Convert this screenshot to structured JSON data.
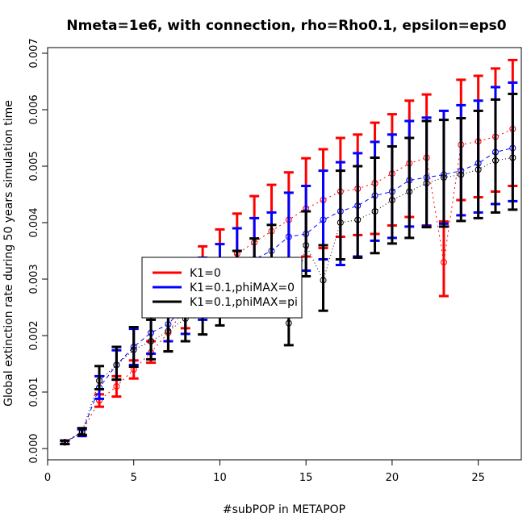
{
  "chart_data": {
    "type": "scatter",
    "title": "Nmeta=1e6, with connection, rho=Rho0.1, epsilon=eps0",
    "xlabel": "#subPOP in METAPOP",
    "ylabel": "Global extinction rate during 50 years simulation time",
    "xlim": [
      0,
      27.5
    ],
    "ylim": [
      -0.0002,
      0.0071
    ],
    "xticks": [
      0,
      5,
      10,
      15,
      20,
      25
    ],
    "xtick_labels": [
      "0",
      "5",
      "10",
      "15",
      "20",
      "25"
    ],
    "yticks": [
      0,
      0.001,
      0.002,
      0.003,
      0.004,
      0.005,
      0.006,
      0.007
    ],
    "ytick_labels": [
      "0.000",
      "0.001",
      "0.002",
      "0.003",
      "0.004",
      "0.005",
      "0.006",
      "0.007"
    ],
    "legend": {
      "position": "center-left"
    },
    "series": [
      {
        "name": "K1=0",
        "color": "#ff0000",
        "dash": "2,4",
        "x": [
          1,
          2,
          3,
          4,
          5,
          6,
          7,
          8,
          9,
          10,
          11,
          12,
          13,
          14,
          15,
          16,
          17,
          18,
          19,
          20,
          21,
          22,
          23,
          24,
          25,
          26,
          27
        ],
        "y": [
          0.00011,
          0.0003,
          0.00085,
          0.0011,
          0.0014,
          0.0017,
          0.00205,
          0.0025,
          0.003,
          0.00325,
          0.00345,
          0.00365,
          0.00385,
          0.00405,
          0.00425,
          0.0044,
          0.00455,
          0.0046,
          0.0047,
          0.00487,
          0.00505,
          0.00515,
          0.0033,
          0.00538,
          0.00544,
          0.00552,
          0.00566
        ],
        "lo": [
          8e-05,
          0.00024,
          0.00074,
          0.00092,
          0.00124,
          0.00152,
          0.00172,
          0.00213,
          0.00248,
          0.00268,
          0.00283,
          0.00298,
          0.00313,
          0.0033,
          0.0034,
          0.00355,
          0.00375,
          0.00378,
          0.0038,
          0.00395,
          0.0041,
          0.00395,
          0.0027,
          0.0044,
          0.00445,
          0.00455,
          0.00465
        ],
        "hi": [
          0.00014,
          0.00036,
          0.00096,
          0.00128,
          0.00156,
          0.0019,
          0.0024,
          0.0029,
          0.00358,
          0.00388,
          0.00416,
          0.00447,
          0.00467,
          0.00489,
          0.00514,
          0.0053,
          0.0055,
          0.00556,
          0.00577,
          0.00592,
          0.00616,
          0.00627,
          0.00402,
          0.00653,
          0.0066,
          0.00673,
          0.00688
        ]
      },
      {
        "name": "K1=0.1,phiMAX=0",
        "color": "#0000ff",
        "dash": "5,4",
        "x": [
          1,
          2,
          3,
          4,
          5,
          6,
          7,
          8,
          9,
          10,
          11,
          12,
          13,
          14,
          15,
          16,
          17,
          18,
          19,
          20,
          21,
          22,
          23,
          24,
          25,
          26,
          27
        ],
        "y": [
          0.00011,
          0.00028,
          0.00108,
          0.00148,
          0.0018,
          0.00205,
          0.0022,
          0.00255,
          0.0028,
          0.00305,
          0.00325,
          0.00335,
          0.0035,
          0.00375,
          0.0038,
          0.00405,
          0.0042,
          0.0043,
          0.00448,
          0.00455,
          0.00475,
          0.0048,
          0.00485,
          0.00492,
          0.00505,
          0.00525,
          0.00532
        ],
        "lo": [
          8e-05,
          0.00022,
          0.00088,
          0.00122,
          0.00148,
          0.00168,
          0.0019,
          0.00203,
          0.00228,
          0.00248,
          0.00265,
          0.00275,
          0.00285,
          0.00308,
          0.00315,
          0.00335,
          0.00325,
          0.0034,
          0.00368,
          0.00373,
          0.00393,
          0.00394,
          0.00398,
          0.00413,
          0.00418,
          0.00433,
          0.00438
        ],
        "hi": [
          0.00014,
          0.00034,
          0.00128,
          0.00174,
          0.00212,
          0.00242,
          0.0025,
          0.00307,
          0.00338,
          0.00362,
          0.0039,
          0.00408,
          0.00418,
          0.00453,
          0.00465,
          0.00492,
          0.00507,
          0.00523,
          0.00543,
          0.00556,
          0.0058,
          0.00586,
          0.00598,
          0.00608,
          0.00616,
          0.0064,
          0.00648
        ]
      },
      {
        "name": "K1=0.1,phiMAX=pi",
        "color": "#000000",
        "dash": "1,3",
        "x": [
          1,
          2,
          3,
          4,
          5,
          6,
          7,
          8,
          9,
          10,
          11,
          12,
          13,
          14,
          15,
          16,
          17,
          18,
          19,
          20,
          21,
          22,
          23,
          24,
          25,
          26,
          27
        ],
        "y": [
          0.00011,
          0.0003,
          0.0012,
          0.00148,
          0.00175,
          0.0019,
          0.00208,
          0.0023,
          0.0025,
          0.0027,
          0.0029,
          0.00307,
          0.00325,
          0.00222,
          0.0036,
          0.00298,
          0.004,
          0.00405,
          0.0042,
          0.0044,
          0.00455,
          0.0047,
          0.0048,
          0.00485,
          0.00494,
          0.0051,
          0.00515
        ],
        "lo": [
          8e-05,
          0.00024,
          0.00105,
          0.00122,
          0.00145,
          0.00158,
          0.00172,
          0.0019,
          0.00202,
          0.00218,
          0.00237,
          0.00252,
          0.00255,
          0.00183,
          0.00305,
          0.00244,
          0.00335,
          0.00338,
          0.00346,
          0.00363,
          0.00373,
          0.00392,
          0.00393,
          0.00403,
          0.00408,
          0.00418,
          0.00423
        ],
        "hi": [
          0.00014,
          0.00036,
          0.00146,
          0.0018,
          0.00215,
          0.00228,
          0.0025,
          0.00276,
          0.00307,
          0.00325,
          0.0035,
          0.00372,
          0.00396,
          0.00268,
          0.0042,
          0.0036,
          0.00492,
          0.005,
          0.00515,
          0.00535,
          0.0055,
          0.0058,
          0.00582,
          0.00585,
          0.00598,
          0.00618,
          0.00628
        ]
      }
    ]
  }
}
